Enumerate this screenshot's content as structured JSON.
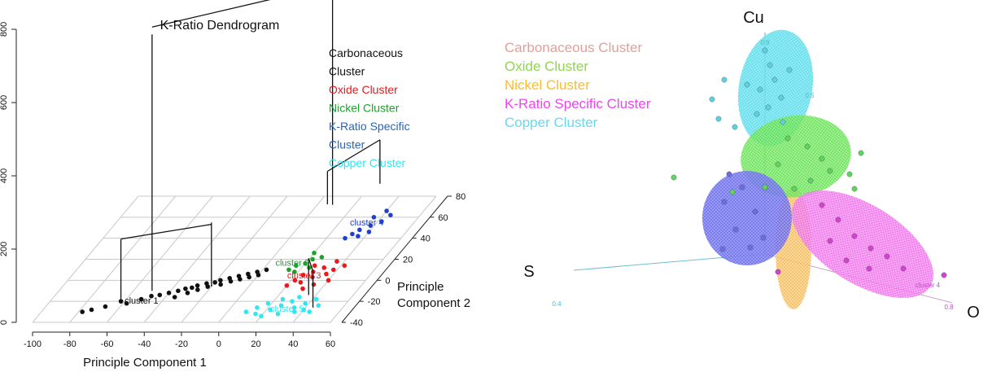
{
  "left": {
    "title": "K-Ratio Dendrogram",
    "legend": [
      {
        "lines": [
          "Carbonaceous",
          "Cluster"
        ],
        "color": "#111111"
      },
      {
        "lines": [
          "Oxide Cluster"
        ],
        "color": "#e8191c"
      },
      {
        "lines": [
          "Nickel Cluster"
        ],
        "color": "#1aa32a"
      },
      {
        "lines": [
          "K-Ratio Specific",
          "Cluster"
        ],
        "color": "#1f66c4"
      },
      {
        "lines": [
          "Copper Cluster"
        ],
        "color": "#2de8f2"
      }
    ],
    "x_axis_label": "Principle Component 1",
    "y_axis_label_lines": [
      "Principle",
      "Component 2"
    ],
    "z_ticks": [
      "0",
      "200",
      "400",
      "600",
      "800"
    ],
    "x_ticks": [
      "-100",
      "-80",
      "-60",
      "-40",
      "-20",
      "0",
      "20",
      "40",
      "60"
    ],
    "y_ticks": [
      "-40",
      "-20",
      "0",
      "20",
      "40",
      "60",
      "80"
    ],
    "cluster_labels": [
      {
        "text": "cluster 1",
        "color": "#111111"
      },
      {
        "text": "cluster 4",
        "color": "#1f3fd0"
      },
      {
        "text": "cluster 2",
        "color": "#1aa32a"
      },
      {
        "text": "cluster 3",
        "color": "#e8191c"
      },
      {
        "text": "cluster 5",
        "color": "#2de8f2"
      }
    ]
  },
  "right": {
    "legend": [
      {
        "text": "Carbonaceous Cluster",
        "color": "#e3a09a"
      },
      {
        "text": "Oxide Cluster",
        "color": "#8fd64f"
      },
      {
        "text": "Nickel Cluster",
        "color": "#f9bd2b"
      },
      {
        "text": "K-Ratio Specific Cluster",
        "color": "#ee44ee"
      },
      {
        "text": "Copper Cluster",
        "color": "#66d9ee"
      }
    ],
    "axis_cu": "Cu",
    "axis_s": "S",
    "axis_o": "O",
    "tick_s": "0.4",
    "tick_o": "0.8",
    "tick_cu": "0.9",
    "tick_cu_mid": "0.5",
    "label_cluster4": "cluster 4"
  },
  "chart_data": [
    {
      "type": "scatter",
      "title": "K-Ratio Dendrogram",
      "xlabel": "Principle Component 1",
      "ylabel": "Principle Component 2",
      "zlabel": "",
      "xlim": [
        -100,
        60
      ],
      "ylim": [
        -40,
        80
      ],
      "zlim": [
        0,
        800
      ],
      "projection": "3d",
      "series": [
        {
          "name": "Carbonaceous Cluster",
          "color": "#111111",
          "points": [
            [
              -78,
              -30,
              0
            ],
            [
              -74,
              -28,
              0
            ],
            [
              -68,
              -25,
              0
            ],
            [
              -62,
              -20,
              0
            ],
            [
              -58,
              -22,
              0
            ],
            [
              -52,
              -18,
              0
            ],
            [
              -48,
              -15,
              0
            ],
            [
              -44,
              -14,
              0
            ],
            [
              -40,
              -12,
              0
            ],
            [
              -36,
              -10,
              0
            ],
            [
              -33,
              -8,
              0
            ],
            [
              -30,
              -7,
              0
            ],
            [
              -28,
              -5,
              0
            ],
            [
              -26,
              -9,
              0
            ],
            [
              -24,
              -3,
              0
            ],
            [
              -22,
              -6,
              0
            ],
            [
              -20,
              -2,
              0
            ],
            [
              -18,
              0,
              0
            ],
            [
              -16,
              -4,
              0
            ],
            [
              -14,
              2,
              0
            ],
            [
              -12,
              -1,
              0
            ],
            [
              -10,
              4,
              0
            ],
            [
              -8,
              1,
              0
            ],
            [
              -6,
              6,
              0
            ],
            [
              -4,
              3,
              0
            ],
            [
              -2,
              8,
              0
            ],
            [
              0,
              5,
              0
            ],
            [
              2,
              10,
              0
            ],
            [
              -35,
              -16,
              0
            ],
            [
              -30,
              -12,
              0
            ]
          ]
        },
        {
          "name": "Oxide Cluster",
          "color": "#e8191c",
          "points": [
            [
              20,
              -5,
              0
            ],
            [
              22,
              0,
              0
            ],
            [
              24,
              5,
              0
            ],
            [
              26,
              -2,
              0
            ],
            [
              28,
              8,
              0
            ],
            [
              30,
              3,
              0
            ],
            [
              32,
              12,
              0
            ],
            [
              34,
              -4,
              0
            ],
            [
              36,
              6,
              0
            ],
            [
              38,
              10,
              0
            ],
            [
              40,
              0,
              0
            ],
            [
              42,
              14,
              0
            ],
            [
              30,
              -8,
              0
            ],
            [
              26,
              14,
              0
            ],
            [
              36,
              18,
              0
            ]
          ]
        },
        {
          "name": "Nickel Cluster",
          "color": "#1aa32a",
          "points": [
            [
              14,
              10,
              0
            ],
            [
              16,
              14,
              0
            ],
            [
              18,
              8,
              0
            ],
            [
              20,
              16,
              0
            ],
            [
              22,
              20,
              0
            ],
            [
              24,
              12,
              0
            ],
            [
              26,
              22,
              0
            ],
            [
              20,
              26,
              0
            ]
          ]
        },
        {
          "name": "K-Ratio Specific Cluster",
          "color": "#1f3fd0",
          "points": [
            [
              30,
              40,
              0
            ],
            [
              32,
              44,
              0
            ],
            [
              34,
              48,
              0
            ],
            [
              36,
              42,
              0
            ],
            [
              38,
              52,
              0
            ],
            [
              40,
              46,
              0
            ],
            [
              42,
              56,
              0
            ],
            [
              36,
              60,
              0
            ],
            [
              44,
              62,
              0
            ],
            [
              40,
              66,
              0
            ]
          ]
        },
        {
          "name": "Copper Cluster",
          "color": "#2de8f2",
          "points": [
            [
              10,
              -30,
              0
            ],
            [
              14,
              -26,
              0
            ],
            [
              18,
              -22,
              0
            ],
            [
              22,
              -28,
              0
            ],
            [
              26,
              -24,
              0
            ],
            [
              30,
              -20,
              0
            ],
            [
              34,
              -26,
              0
            ],
            [
              38,
              -22,
              0
            ],
            [
              42,
              -18,
              0
            ],
            [
              46,
              -24,
              0
            ],
            [
              28,
              -32,
              0
            ],
            [
              36,
              -30,
              0
            ],
            [
              20,
              -34,
              0
            ],
            [
              40,
              -28,
              0
            ],
            [
              32,
              -16,
              0
            ],
            [
              24,
              -18,
              0
            ],
            [
              44,
              -30,
              0
            ],
            [
              16,
              -32,
              0
            ]
          ]
        }
      ]
    },
    {
      "type": "scatter",
      "projection": "3d",
      "xlabel": "S",
      "ylabel": "O",
      "zlabel": "Cu",
      "series": [
        {
          "name": "Carbonaceous Cluster",
          "color": "#e3a09a"
        },
        {
          "name": "Oxide Cluster",
          "color": "#8fd64f"
        },
        {
          "name": "Nickel Cluster",
          "color": "#f9bd2b"
        },
        {
          "name": "K-Ratio Specific Cluster",
          "color": "#ee44ee"
        },
        {
          "name": "Copper Cluster",
          "color": "#66d9ee"
        }
      ]
    }
  ]
}
